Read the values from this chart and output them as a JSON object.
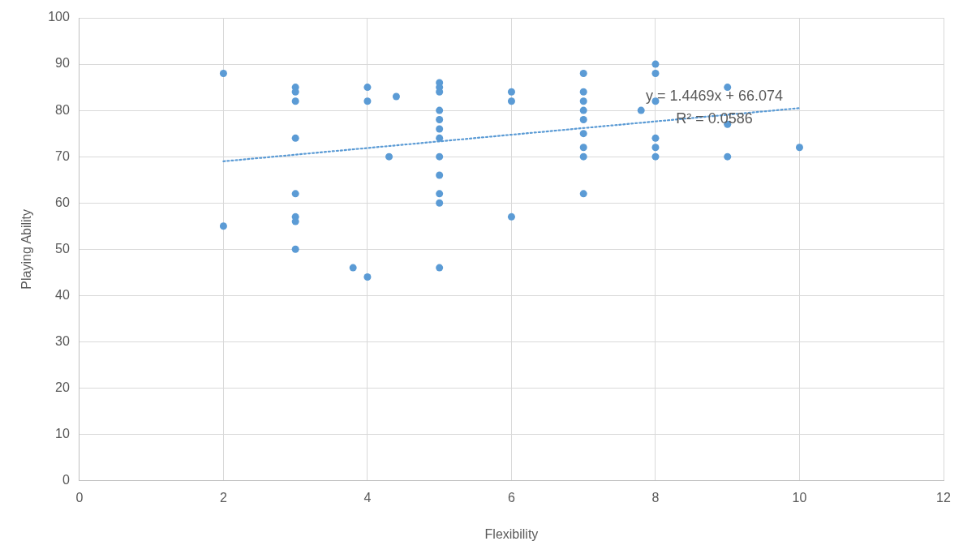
{
  "chart_data": {
    "type": "scatter",
    "xlabel": "Flexibility",
    "ylabel": "Playing Ability",
    "xlim": [
      0,
      12
    ],
    "xticks": [
      0,
      2,
      4,
      6,
      8,
      10,
      12
    ],
    "ylim": [
      0,
      100
    ],
    "yticks": [
      0,
      10,
      20,
      30,
      40,
      50,
      60,
      70,
      80,
      90,
      100
    ],
    "grid": true,
    "legend": false,
    "marker": "circle",
    "series": [
      {
        "color": "#5b9bd5",
        "x": [
          2,
          2,
          3,
          3,
          3,
          3,
          3,
          3,
          3,
          3,
          3.8,
          4,
          4,
          4,
          4.3,
          4.4,
          5,
          5,
          5,
          5,
          5,
          5,
          5,
          5,
          5,
          5,
          5,
          5,
          6,
          6,
          6,
          7,
          7,
          7,
          7,
          7,
          7,
          7,
          7,
          7,
          7.8,
          8,
          8,
          8,
          8,
          8,
          8,
          9,
          9,
          9,
          10
        ],
        "values": [
          88,
          55,
          85,
          84,
          82,
          74,
          62,
          57,
          56,
          50,
          46,
          85,
          82,
          44,
          70,
          83,
          86,
          85,
          84,
          80,
          78,
          76,
          74,
          70,
          66,
          62,
          60,
          46,
          84,
          82,
          57,
          88,
          84,
          82,
          80,
          78,
          75,
          72,
          70,
          62,
          80,
          90,
          88,
          82,
          74,
          72,
          70,
          85,
          77,
          70,
          72
        ]
      },
      {
        "type": "line",
        "line_style": "dotted",
        "marker": "none",
        "color": "#5b9bd5",
        "x": [
          2,
          10
        ],
        "values": [
          69,
          80.5
        ]
      }
    ],
    "annotations": [
      "y = 1.4469x + 66.074",
      "R² = 0.0586"
    ]
  }
}
